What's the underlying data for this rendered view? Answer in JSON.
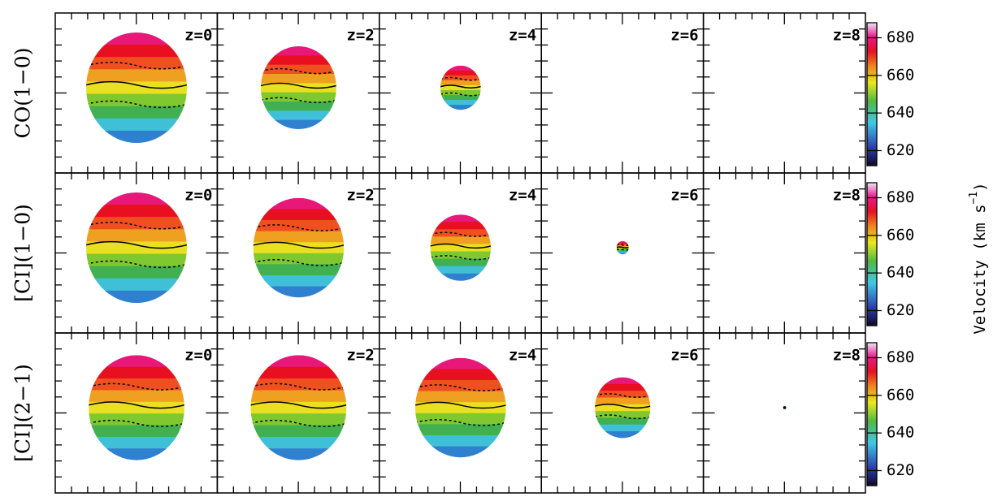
{
  "rows": [
    {
      "label": "CO(1−0)",
      "panels": [
        "z=0",
        "z=2",
        "z=4",
        "z=6",
        "z=8"
      ]
    },
    {
      "label": "[CI](1−0)",
      "panels": [
        "z=0",
        "z=2",
        "z=4",
        "z=6",
        "z=8"
      ]
    },
    {
      "label": "[CI](2−1)",
      "panels": [
        "z=0",
        "z=2",
        "z=4",
        "z=6",
        "z=8"
      ]
    }
  ],
  "colorbar": {
    "lim": [
      612,
      688
    ],
    "ticks": [
      620,
      640,
      660,
      680
    ],
    "label": "Velocity (km s",
    "label_sup": "−1",
    "label_end": ")"
  }
}
